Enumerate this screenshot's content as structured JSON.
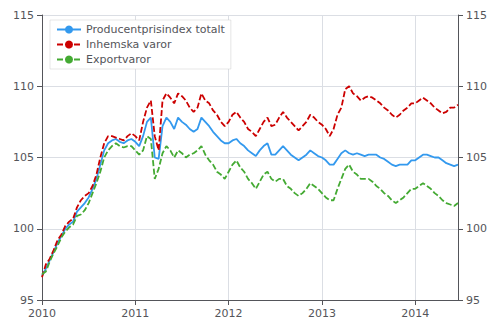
{
  "chart_data": {
    "type": "line",
    "categories": [
      "2010",
      null,
      null,
      null,
      null,
      null,
      null,
      null,
      null,
      null,
      null,
      null,
      null,
      null,
      null,
      null,
      null,
      null,
      null,
      null,
      null,
      null,
      null,
      null,
      "2011",
      null,
      null,
      null,
      null,
      null,
      null,
      null,
      null,
      null,
      null,
      null,
      null,
      null,
      null,
      null,
      null,
      null,
      null,
      null,
      null,
      null,
      null,
      null,
      "2012",
      null,
      null,
      null,
      null,
      null,
      null,
      null,
      null,
      null,
      null,
      null,
      null,
      null,
      null,
      null,
      null,
      null,
      null,
      null,
      null,
      null,
      null,
      null,
      "2013",
      null,
      null,
      null,
      null,
      null,
      null,
      null,
      null,
      null,
      null,
      null,
      null,
      null,
      null,
      null,
      null,
      null,
      null,
      null,
      null,
      null,
      null,
      null,
      "2014",
      null,
      null,
      null,
      null,
      null,
      null,
      null,
      null,
      null,
      null,
      null
    ],
    "series": [
      {
        "name": "Producentprisindex totalt",
        "color": "#3399ee",
        "line_style": "solid",
        "values": [
          96.7,
          97.2,
          97.8,
          98.4,
          99.0,
          99.5,
          100.0,
          100.3,
          100.5,
          101.2,
          101.5,
          101.8,
          102.2,
          102.8,
          103.5,
          104.5,
          105.5,
          106.0,
          106.2,
          106.3,
          106.1,
          106.0,
          106.2,
          106.3,
          106.1,
          105.8,
          106.5,
          107.5,
          107.8,
          105.0,
          104.9,
          107.2,
          107.8,
          107.5,
          107.0,
          107.8,
          107.5,
          107.3,
          107.0,
          106.8,
          107.0,
          107.8,
          107.5,
          107.2,
          106.8,
          106.5,
          106.2,
          106.0,
          106.0,
          106.2,
          106.3,
          106.0,
          105.8,
          105.5,
          105.3,
          105.1,
          105.5,
          105.8,
          106.0,
          105.2,
          105.2,
          105.5,
          105.8,
          105.5,
          105.2,
          105.0,
          104.8,
          105.0,
          105.2,
          105.5,
          105.3,
          105.1,
          105.0,
          104.8,
          104.5,
          104.5,
          104.9,
          105.3,
          105.5,
          105.3,
          105.2,
          105.3,
          105.2,
          105.1,
          105.2,
          105.2,
          105.2,
          105.0,
          104.9,
          104.7,
          104.5,
          104.4,
          104.5,
          104.5,
          104.5,
          104.8,
          104.8,
          105.0,
          105.2,
          105.2,
          105.1,
          105.0,
          105.0,
          104.8,
          104.6,
          104.5,
          104.4,
          104.5
        ]
      },
      {
        "name": "Inhemska varor",
        "color": "#cc0000",
        "line_style": "dashed",
        "values": [
          96.6,
          97.5,
          97.9,
          98.5,
          99.2,
          99.6,
          100.2,
          100.5,
          100.7,
          101.5,
          102.0,
          102.3,
          102.5,
          103.0,
          103.8,
          105.0,
          106.0,
          106.5,
          106.5,
          106.4,
          106.3,
          106.2,
          106.5,
          106.7,
          106.5,
          106.2,
          107.5,
          108.5,
          109.0,
          106.5,
          105.5,
          109.0,
          109.5,
          109.2,
          108.8,
          109.5,
          109.3,
          109.0,
          108.5,
          108.2,
          108.5,
          109.5,
          109.0,
          108.8,
          108.3,
          108.0,
          107.5,
          107.2,
          107.5,
          108.0,
          108.2,
          107.8,
          107.5,
          107.0,
          106.8,
          106.5,
          107.0,
          107.5,
          107.8,
          107.2,
          107.3,
          107.8,
          108.2,
          107.8,
          107.5,
          107.2,
          106.9,
          107.2,
          107.5,
          108.0,
          107.8,
          107.5,
          107.3,
          107.0,
          106.5,
          107.0,
          108.0,
          108.5,
          109.8,
          110.0,
          109.5,
          109.3,
          109.0,
          109.2,
          109.3,
          109.2,
          109.0,
          108.8,
          108.5,
          108.3,
          108.0,
          107.8,
          108.0,
          108.3,
          108.5,
          108.8,
          108.8,
          109.0,
          109.2,
          109.0,
          108.8,
          108.5,
          108.3,
          108.1,
          108.2,
          108.5,
          108.5,
          108.7
        ]
      },
      {
        "name": "Exportvaror",
        "color": "#44aa33",
        "line_style": "dashed",
        "values": [
          96.8,
          97.0,
          97.7,
          98.3,
          98.8,
          99.4,
          99.8,
          100.1,
          100.3,
          100.9,
          101.0,
          101.3,
          101.8,
          102.5,
          103.2,
          104.0,
          105.0,
          105.5,
          105.8,
          106.0,
          105.8,
          105.7,
          105.8,
          105.8,
          105.5,
          105.2,
          105.5,
          106.5,
          106.3,
          103.5,
          104.2,
          105.3,
          105.8,
          105.5,
          105.0,
          105.5,
          105.3,
          105.0,
          105.2,
          105.3,
          105.5,
          105.8,
          105.2,
          104.8,
          104.5,
          104.0,
          103.8,
          103.5,
          104.0,
          104.5,
          104.8,
          104.3,
          104.0,
          103.5,
          103.2,
          102.8,
          103.3,
          103.8,
          104.0,
          103.5,
          103.3,
          103.5,
          103.5,
          103.0,
          102.8,
          102.5,
          102.3,
          102.5,
          102.8,
          103.2,
          103.0,
          102.8,
          102.5,
          102.2,
          102.0,
          102.0,
          102.8,
          103.5,
          104.2,
          104.5,
          104.0,
          103.8,
          103.5,
          103.5,
          103.5,
          103.3,
          103.0,
          102.8,
          102.5,
          102.3,
          102.0,
          101.8,
          102.0,
          102.2,
          102.5,
          102.8,
          102.8,
          103.0,
          103.2,
          103.0,
          102.8,
          102.5,
          102.3,
          102.0,
          101.8,
          101.7,
          101.6,
          101.8
        ]
      }
    ],
    "ylim": [
      95,
      115
    ],
    "yticks": [
      95,
      100,
      105,
      110,
      115
    ],
    "y2lim": [
      95,
      115
    ],
    "y2ticks": [
      95,
      100,
      105,
      110,
      115
    ],
    "grid": true,
    "legend": "upper left"
  }
}
